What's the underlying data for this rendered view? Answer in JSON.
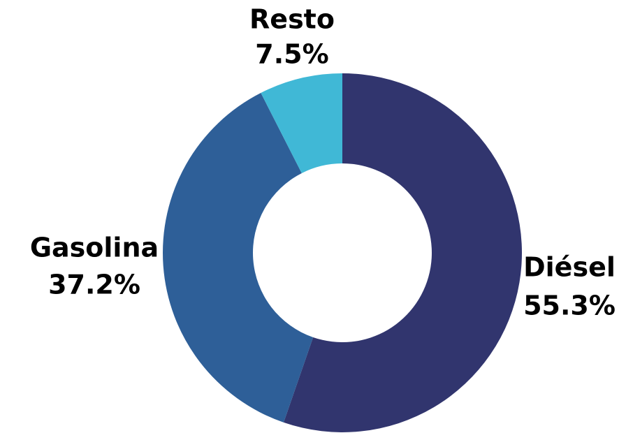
{
  "chart_data": {
    "type": "donut",
    "categories": [
      "Diésel",
      "Gasolina",
      "Resto"
    ],
    "values": [
      55.3,
      37.2,
      7.5
    ],
    "value_labels": [
      "55.3%",
      "37.2%",
      "7.5%"
    ],
    "colors": [
      "#31356e",
      "#2e5f98",
      "#40b8d6"
    ]
  }
}
